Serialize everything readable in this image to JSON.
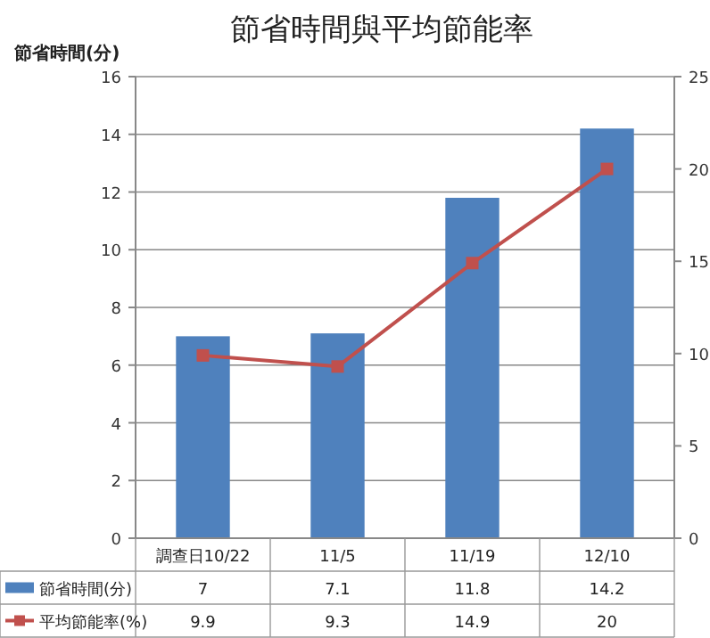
{
  "chart_data": {
    "type": "bar",
    "title": "節省時間與平均節能率",
    "ylabel": "節省時間(分)",
    "categories": [
      "調查日10/22",
      "11/5",
      "11/19",
      "12/10"
    ],
    "series": [
      {
        "name": "節省時間(分)",
        "color": "#4f81bd",
        "values": [
          7,
          7.1,
          11.8,
          14.2
        ]
      },
      {
        "name": "平均節能率(%)",
        "type": "line",
        "axis": "y2",
        "color": "#c0504d",
        "values": [
          9.9,
          9.3,
          14.9,
          20
        ],
        "marker": "square"
      }
    ],
    "ylim": [
      0,
      16
    ],
    "yticks": [
      0,
      2,
      4,
      6,
      8,
      10,
      12,
      14,
      16
    ],
    "y2lim": [
      0,
      25
    ],
    "y2ticks": [
      0,
      5,
      10,
      15,
      20,
      25
    ],
    "grid": "y",
    "legend": "bottom",
    "data_labels": true
  }
}
